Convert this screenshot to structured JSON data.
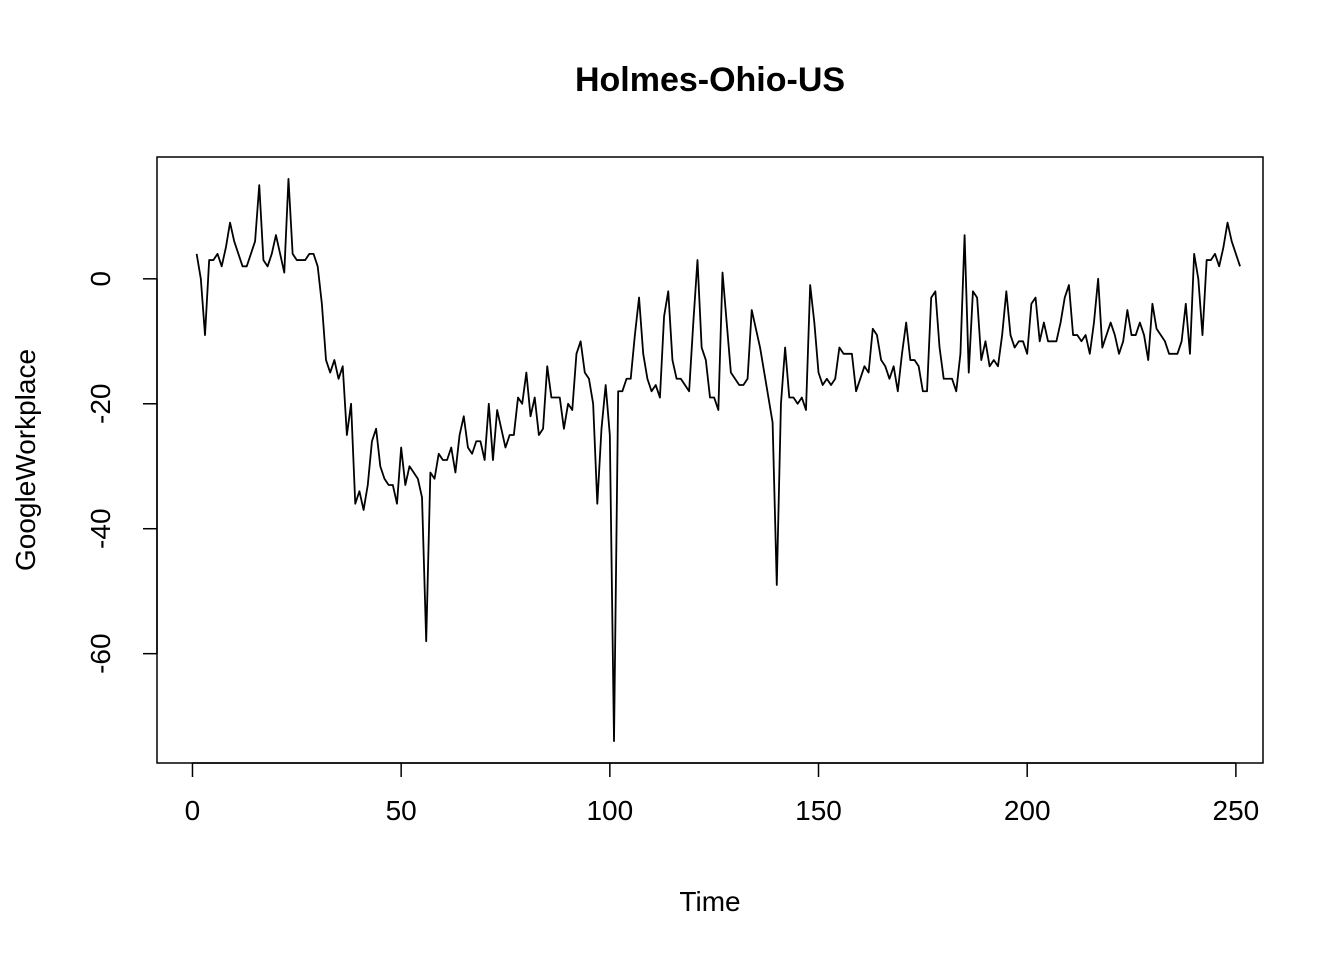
{
  "chart_data": {
    "type": "line",
    "title": "Holmes-Ohio-US",
    "xlabel": "Time",
    "ylabel": "GoogleWorkplace",
    "xlim": [
      -8.5,
      256.5
    ],
    "ylim": [
      -77.5,
      19.5
    ],
    "xticks": [
      0,
      50,
      100,
      150,
      200,
      250
    ],
    "yticks": [
      -60,
      -40,
      -20,
      0
    ],
    "grid": false,
    "legend": "none",
    "series": [
      {
        "values": [
          4,
          0,
          -9,
          3,
          3,
          4,
          2,
          5,
          9,
          6,
          4,
          2,
          2,
          4,
          6,
          15,
          3,
          2,
          4,
          7,
          4,
          1,
          16,
          4,
          3,
          3,
          3,
          4,
          4,
          2,
          -4,
          -13,
          -15,
          -13,
          -16,
          -14,
          -25,
          -20,
          -36,
          -34,
          -37,
          -33,
          -26,
          -24,
          -30,
          -32,
          -33,
          -33,
          -36,
          -27,
          -33,
          -30,
          -31,
          -32,
          -35,
          -58,
          -31,
          -32,
          -28,
          -29,
          -29,
          -27,
          -31,
          -25,
          -22,
          -27,
          -28,
          -26,
          -26,
          -29,
          -20,
          -29,
          -21,
          -24,
          -27,
          -25,
          -25,
          -19,
          -20,
          -15,
          -22,
          -19,
          -25,
          -24,
          -14,
          -19,
          -19,
          -19,
          -24,
          -20,
          -21,
          -12,
          -10,
          -15,
          -16,
          -20,
          -36,
          -24,
          -17,
          -25,
          -74,
          -18,
          -18,
          -16,
          -16,
          -9,
          -3,
          -12,
          -16,
          -18,
          -17,
          -19,
          -6,
          -2,
          -13,
          -16,
          -16,
          -17,
          -18,
          -7,
          3,
          -11,
          -13,
          -19,
          -19,
          -21,
          1,
          -7,
          -15,
          -16,
          -17,
          -17,
          -16,
          -5,
          -8,
          -11,
          -15,
          -19,
          -23,
          -49,
          -20,
          -11,
          -19,
          -19,
          -20,
          -19,
          -21,
          -1,
          -7,
          -15,
          -17,
          -16,
          -17,
          -16,
          -11,
          -12,
          -12,
          -12,
          -18,
          -16,
          -14,
          -15,
          -8,
          -9,
          -13,
          -14,
          -16,
          -14,
          -18,
          -12,
          -7,
          -13,
          -13,
          -14,
          -18,
          -18,
          -3,
          -2,
          -11,
          -16,
          -16,
          -16,
          -18,
          -12,
          7,
          -15,
          -2,
          -3,
          -13,
          -10,
          -14,
          -13,
          -14,
          -9,
          -2,
          -9,
          -11,
          -10,
          -10,
          -12,
          -4,
          -3,
          -10,
          -7,
          -10,
          -10,
          -10,
          -7,
          -3,
          -1,
          -9,
          -9,
          -10,
          -9,
          -12,
          -7,
          0,
          -11,
          -9,
          -7,
          -9,
          -12,
          -10,
          -5,
          -9,
          -9,
          -7,
          -9,
          -13,
          -4,
          -8,
          -9,
          -10,
          -12,
          -12,
          -12,
          -10,
          -4,
          -12,
          4,
          0,
          -9,
          3,
          3,
          4,
          2,
          5,
          9,
          6,
          4,
          2
        ]
      }
    ]
  }
}
